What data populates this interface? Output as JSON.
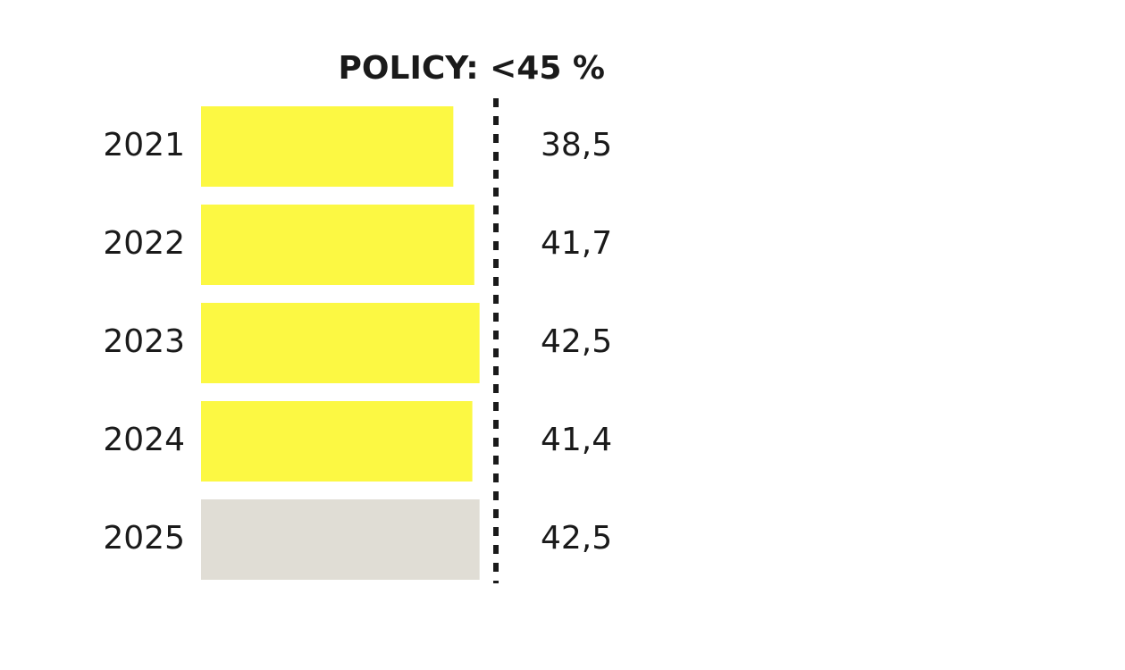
{
  "chart_data": {
    "type": "bar",
    "orientation": "horizontal",
    "policy_label": "POLICY: <45 %",
    "policy_value": 45,
    "categories": [
      "2021",
      "2022",
      "2023",
      "2024",
      "2025"
    ],
    "values": [
      38.5,
      41.7,
      42.5,
      41.4,
      42.5
    ],
    "value_labels": [
      "38,5",
      "41,7",
      "42,5",
      "41,4",
      "42,5"
    ],
    "colors": [
      "#fcf843",
      "#fcf843",
      "#fcf843",
      "#fcf843",
      "#e0ddd5"
    ],
    "xlim": [
      0,
      45
    ]
  }
}
